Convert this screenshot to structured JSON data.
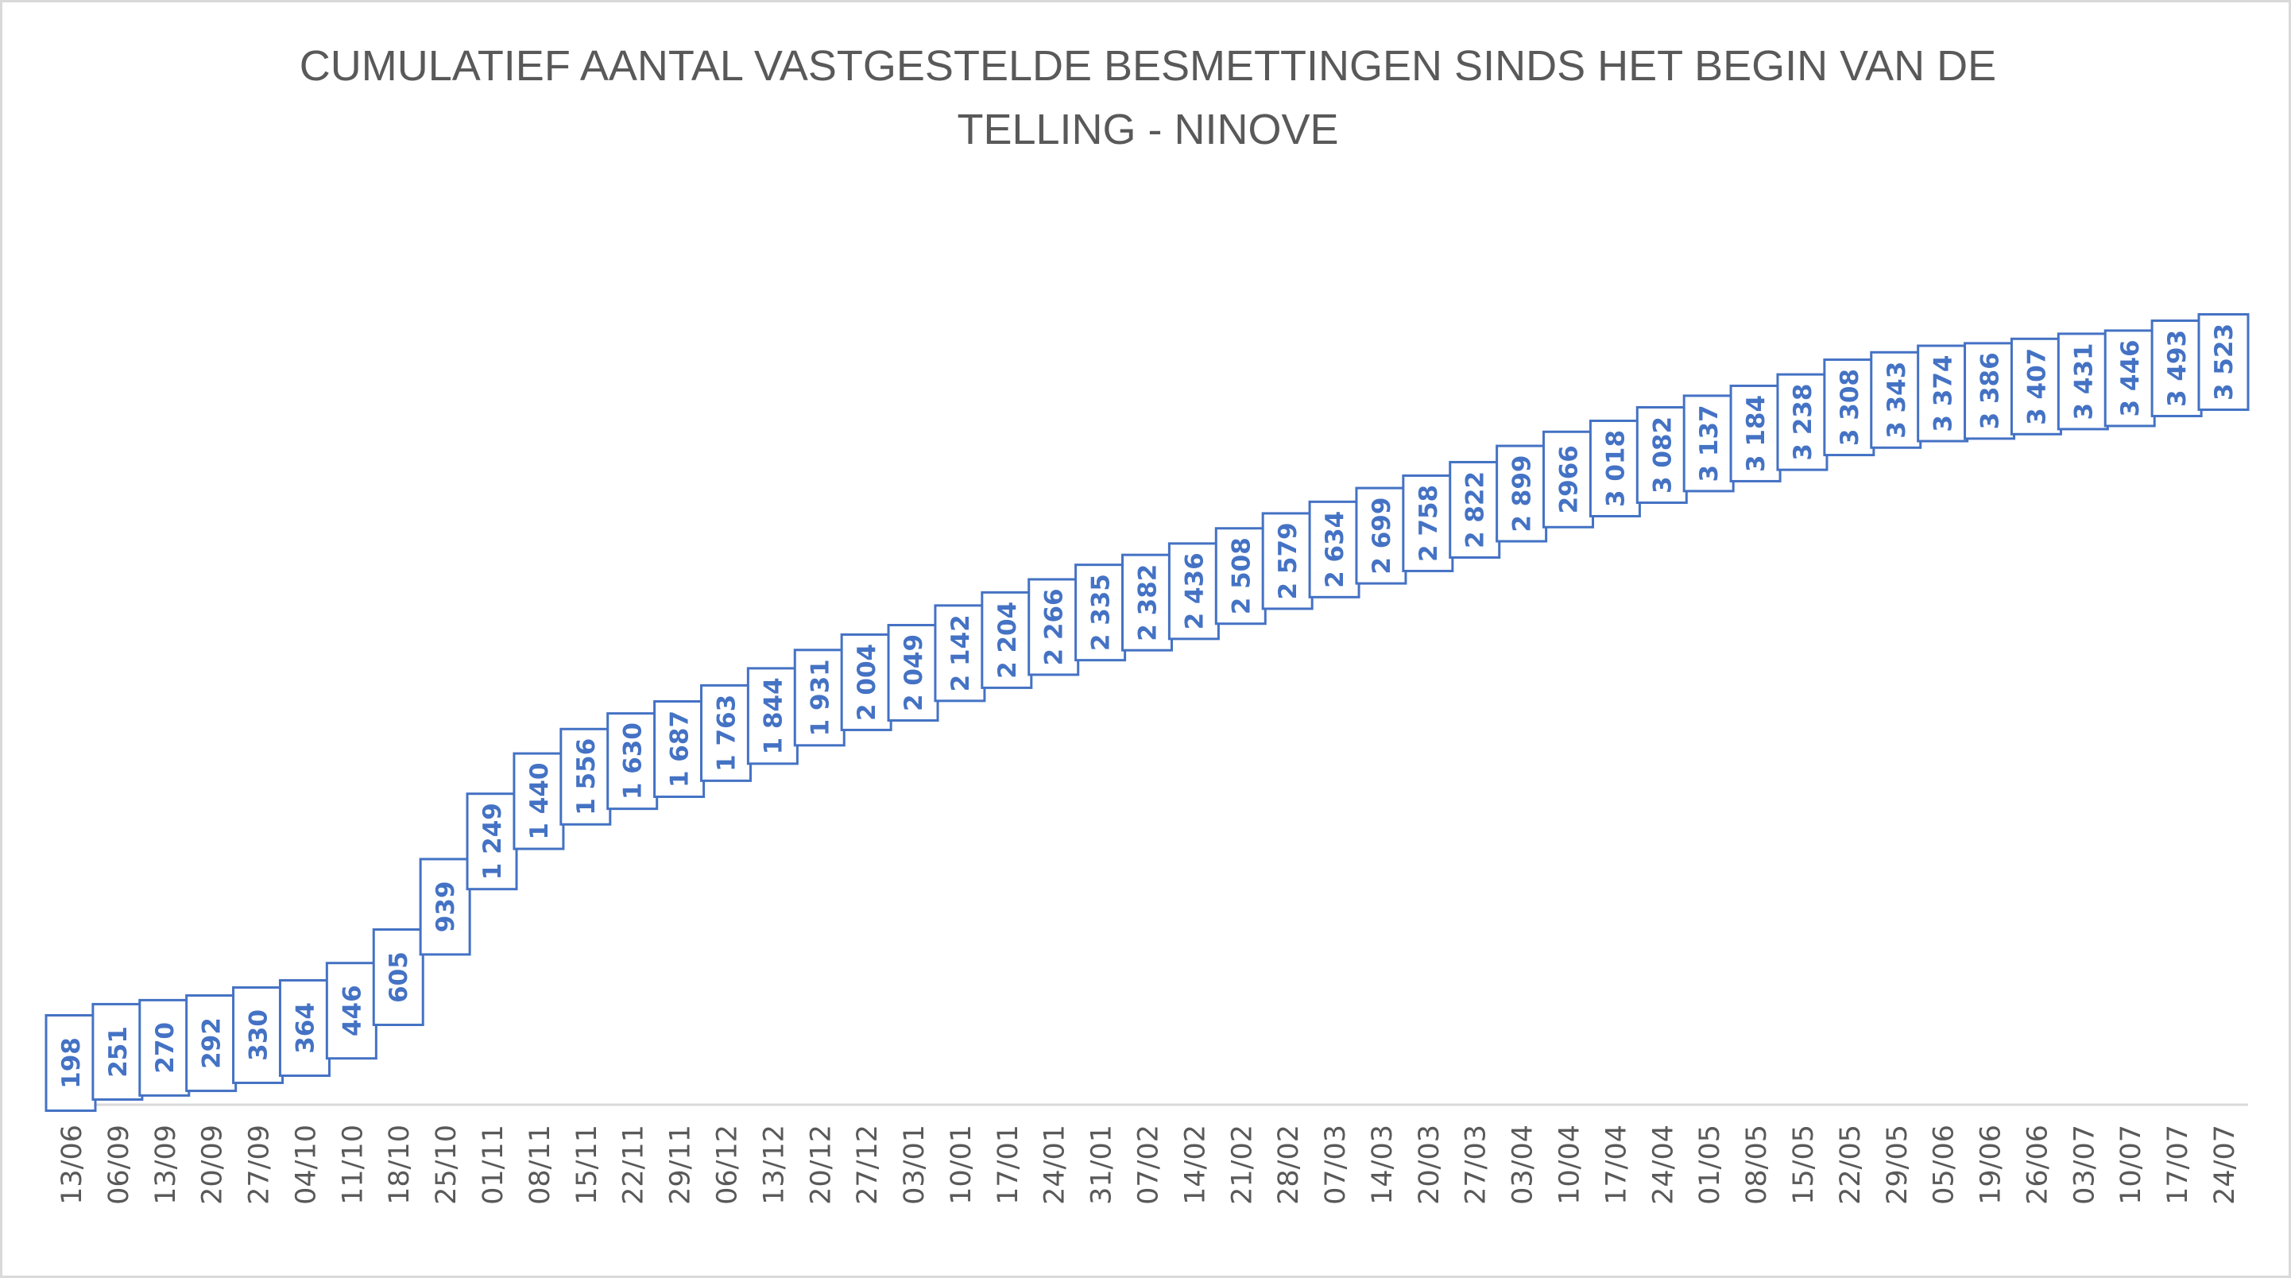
{
  "chart_data": {
    "type": "line",
    "title_lines": [
      "CUMULATIEF AANTAL VASTGESTELDE BESMETTINGEN SINDS HET BEGIN VAN DE",
      "TELLING - NINOVE"
    ],
    "xlabel": "",
    "ylabel": "",
    "ylim": [
      0,
      4000
    ],
    "grid": false,
    "legend": "none",
    "color": "#4472C4",
    "categories": [
      "13/06",
      "06/09",
      "13/09",
      "20/09",
      "27/09",
      "04/10",
      "11/10",
      "18/10",
      "25/10",
      "01/11",
      "08/11",
      "15/11",
      "22/11",
      "29/11",
      "06/12",
      "13/12",
      "20/12",
      "27/12",
      "03/01",
      "10/01",
      "17/01",
      "24/01",
      "31/01",
      "07/02",
      "14/02",
      "21/02",
      "28/02",
      "07/03",
      "14/03",
      "20/03",
      "27/03",
      "03/04",
      "10/04",
      "17/04",
      "24/04",
      "01/05",
      "08/05",
      "15/05",
      "22/05",
      "29/05",
      "05/06",
      "19/06",
      "26/06",
      "03/07",
      "10/07",
      "17/07",
      "24/07"
    ],
    "values": [
      198,
      251,
      270,
      292,
      330,
      364,
      446,
      605,
      939,
      1249,
      1440,
      1556,
      1630,
      1687,
      1763,
      1844,
      1931,
      2004,
      2049,
      2142,
      2204,
      2266,
      2335,
      2382,
      2436,
      2508,
      2579,
      2634,
      2699,
      2758,
      2822,
      2899,
      2966,
      3018,
      3082,
      3137,
      3184,
      3238,
      3308,
      3343,
      3374,
      3386,
      3407,
      3431,
      3446,
      3493,
      3523
    ],
    "data_labels": [
      "198",
      "251",
      "270",
      "292",
      "330",
      "364",
      "446",
      "605",
      "939",
      "1 249",
      "1 440",
      "1 556",
      "1 630",
      "1 687",
      "1 763",
      "1 844",
      "1 931",
      "2 004",
      "2 049",
      "2 142",
      "2 204",
      "2 266",
      "2 335",
      "2 382",
      "2 436",
      "2 508",
      "2 579",
      "2 634",
      "2 699",
      "2 758",
      "2 822",
      "2 899",
      "2966",
      "3 018",
      "3 082",
      "3 137",
      "3 184",
      "3 238",
      "3 308",
      "3 343",
      "3 374",
      "3 386",
      "3 407",
      "3 431",
      "3 446",
      "3 493",
      "3 523"
    ]
  }
}
